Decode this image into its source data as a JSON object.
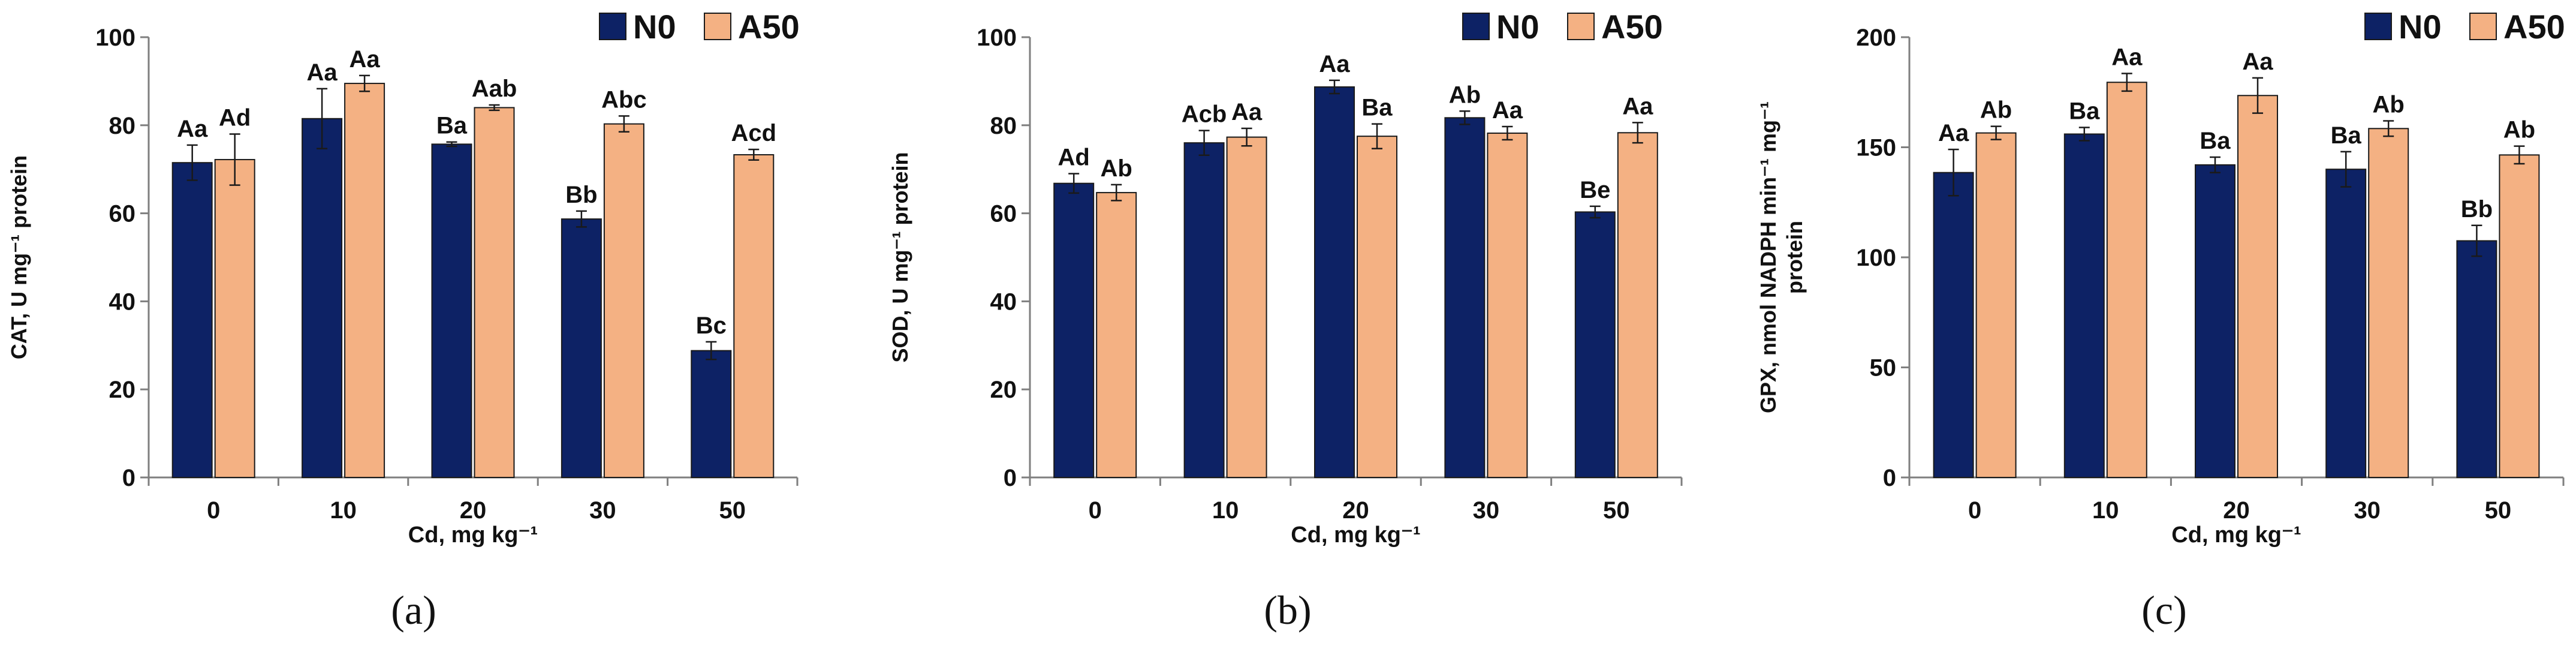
{
  "colors": {
    "N0": "#0d2265",
    "A50": "#f4b183",
    "axis": "#7f7f7f",
    "text": "#111111"
  },
  "chart_data": [
    {
      "type": "bar",
      "panel_label": "(a)",
      "ylabel": "CAT, U mg⁻¹ protein",
      "ylabel_lines": [
        "CAT, U mg⁻¹ protein"
      ],
      "xlabel": "Cd, mg kg⁻¹",
      "ylim": [
        0,
        100
      ],
      "yticks": [
        0,
        20,
        40,
        60,
        80,
        100
      ],
      "categories": [
        "0",
        "10",
        "20",
        "30",
        "50"
      ],
      "legend": {
        "position": "top-right",
        "entries": [
          "N0",
          "A50"
        ]
      },
      "series": [
        {
          "name": "N0",
          "values": [
            71.5,
            81.5,
            75.7,
            58.7,
            28.8
          ],
          "errors": [
            4.0,
            6.8,
            0.5,
            1.8,
            2.0
          ],
          "labels": [
            "Aa",
            "Aa",
            "Ba",
            "Bb",
            "Bc"
          ]
        },
        {
          "name": "A50",
          "values": [
            72.2,
            89.5,
            84.0,
            80.3,
            73.3
          ],
          "errors": [
            5.8,
            1.8,
            0.6,
            1.8,
            1.2
          ],
          "labels": [
            "Ad",
            "Aa",
            "Aab",
            "Abc",
            "Acd"
          ]
        }
      ]
    },
    {
      "type": "bar",
      "panel_label": "(b)",
      "ylabel": "SOD, U mg⁻¹ protein",
      "ylabel_lines": [
        "SOD, U mg⁻¹ protein"
      ],
      "xlabel": "Cd, mg kg⁻¹",
      "ylim": [
        0,
        100
      ],
      "yticks": [
        0,
        20,
        40,
        60,
        80,
        100
      ],
      "categories": [
        "0",
        "10",
        "20",
        "30",
        "50"
      ],
      "legend": {
        "position": "top-right",
        "entries": [
          "N0",
          "A50"
        ]
      },
      "series": [
        {
          "name": "N0",
          "values": [
            66.8,
            76.0,
            88.7,
            81.7,
            60.3
          ],
          "errors": [
            2.2,
            2.8,
            1.5,
            1.5,
            1.3
          ],
          "labels": [
            "Ad",
            "Acb",
            "Aa",
            "Ab",
            "Be"
          ]
        },
        {
          "name": "A50",
          "values": [
            64.7,
            77.3,
            77.5,
            78.2,
            78.3
          ],
          "errors": [
            1.8,
            2.0,
            2.8,
            1.5,
            2.3
          ],
          "labels": [
            "Ab",
            "Aa",
            "Ba",
            "Aa",
            "Aa"
          ]
        }
      ]
    },
    {
      "type": "bar",
      "panel_label": "(c)",
      "ylabel": "GPX, nmol NADPH min⁻¹ mg⁻¹ protein",
      "ylabel_lines": [
        "GPX, nmol NADPH min⁻¹  mg⁻¹",
        "protein"
      ],
      "xlabel": "Cd, mg kg⁻¹",
      "ylim": [
        0,
        200
      ],
      "yticks": [
        0,
        50,
        100,
        150,
        200
      ],
      "categories": [
        "0",
        "10",
        "20",
        "30",
        "50"
      ],
      "legend": {
        "position": "top-right",
        "entries": [
          "N0",
          "A50"
        ]
      },
      "series": [
        {
          "name": "N0",
          "values": [
            138.5,
            156.0,
            142.0,
            140.0,
            107.5
          ],
          "errors": [
            10.5,
            3.0,
            3.5,
            8.0,
            7.0
          ],
          "labels": [
            "Aa",
            "Ba",
            "Ba",
            "Ba",
            "Bb"
          ]
        },
        {
          "name": "A50",
          "values": [
            156.5,
            179.5,
            173.5,
            158.5,
            146.5
          ],
          "errors": [
            3.0,
            4.0,
            8.0,
            3.5,
            4.0
          ],
          "labels": [
            "Ab",
            "Aa",
            "Aa",
            "Ab",
            "Ab"
          ]
        }
      ]
    }
  ]
}
